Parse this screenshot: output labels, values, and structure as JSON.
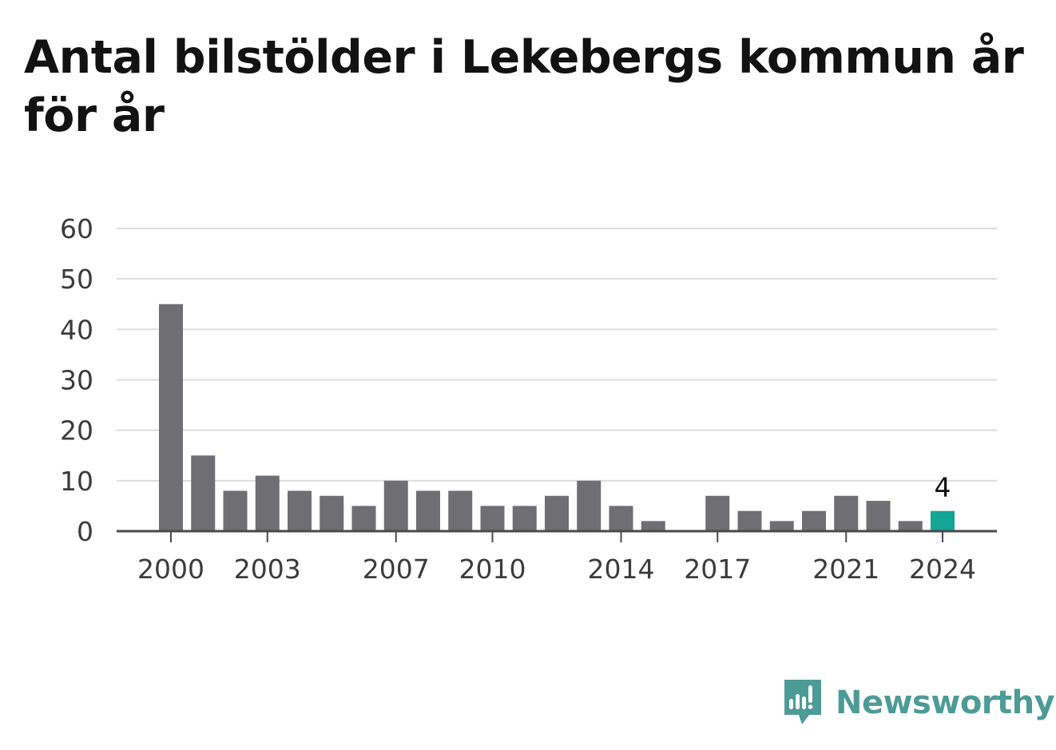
{
  "chart_data": {
    "type": "bar",
    "title": "Antal bilstölder i Lekebergs kommun år för år",
    "categories": [
      "2000",
      "2001",
      "2002",
      "2003",
      "2004",
      "2005",
      "2006",
      "2007",
      "2008",
      "2009",
      "2010",
      "2011",
      "2012",
      "2013",
      "2014",
      "2015",
      "2016",
      "2017",
      "2018",
      "2019",
      "2020",
      "2021",
      "2022",
      "2023",
      "2024"
    ],
    "values": [
      45,
      15,
      8,
      11,
      8,
      7,
      5,
      10,
      8,
      8,
      5,
      5,
      7,
      10,
      5,
      2,
      0,
      7,
      4,
      2,
      4,
      7,
      6,
      2,
      4
    ],
    "x_tick_labels": [
      "2000",
      "2003",
      "2007",
      "2010",
      "2014",
      "2017",
      "2021",
      "2024"
    ],
    "y_ticks": [
      0,
      10,
      20,
      30,
      40,
      50,
      60
    ],
    "ylim": [
      0,
      60
    ],
    "grid": true,
    "highlight": {
      "category": "2024",
      "label": "4"
    },
    "colors": {
      "bar": "#6f6e73",
      "highlight": "#13a595",
      "grid": "#dcdcdc",
      "axis": "#4a4a4a"
    }
  },
  "brand": {
    "name": "Newsworthy",
    "icon": "newsworthy-logo-icon",
    "color": "#4d9b97"
  }
}
